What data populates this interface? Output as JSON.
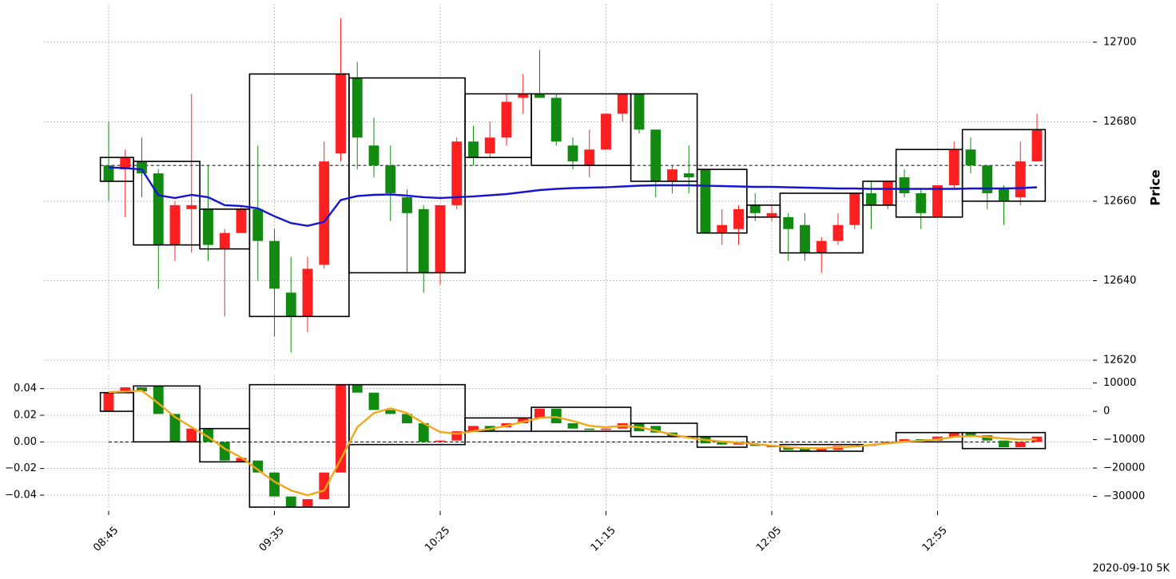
{
  "chart_data": {
    "type": "candlestick",
    "categories": [
      "08:45",
      null,
      null,
      null,
      null,
      null,
      null,
      null,
      null,
      null,
      "09:35",
      null,
      null,
      null,
      null,
      null,
      null,
      null,
      null,
      null,
      "10:25",
      null,
      null,
      null,
      null,
      null,
      null,
      null,
      null,
      null,
      "11:15",
      null,
      null,
      null,
      null,
      null,
      null,
      null,
      null,
      null,
      "12:05",
      null,
      null,
      null,
      null,
      null,
      null,
      null,
      null,
      null,
      "12:55",
      null,
      null,
      null,
      null,
      null,
      null
    ],
    "ylabel": "Price",
    "footnote": "2020-09-10 5K",
    "grid": true,
    "up_color": "#fe2020",
    "down_color": "#128a12",
    "ylim": [
      12617.8,
      12709.6
    ],
    "yticks": [
      12620,
      12640,
      12660,
      12680,
      12700
    ],
    "open": [
      12669,
      12668,
      12670,
      12667,
      12649,
      12658,
      12658,
      12648,
      12652,
      12658,
      12650,
      12637,
      12631,
      12644,
      12672,
      12691,
      12674,
      12669,
      12661,
      12658,
      12642,
      12659,
      12675,
      12672,
      12676,
      12686,
      12687,
      12686,
      12674,
      12669,
      12673,
      12682,
      12687,
      12678,
      12665,
      12667,
      12668,
      12652,
      12653,
      12659,
      12656,
      12656,
      12654,
      12647,
      12650,
      12654,
      12662,
      12659,
      12666,
      12662,
      12656,
      12664,
      12673,
      12669,
      12663,
      12661,
      12670
    ],
    "high": [
      12680,
      12673,
      12676,
      12668,
      12660,
      12687,
      12669,
      12653,
      12659,
      12674,
      12653,
      12646,
      12646,
      12675,
      12706,
      12695,
      12681,
      12674,
      12663,
      12659,
      12659,
      12676,
      12679,
      12680,
      12687,
      12692,
      12698,
      12687,
      12676,
      12678,
      12682,
      12687,
      12687,
      12678,
      12669,
      12674,
      12668,
      12658,
      12659,
      12662,
      12659,
      12657,
      12657,
      12651,
      12657,
      12662,
      12665,
      12665,
      12668,
      12663,
      12664,
      12675,
      12676,
      12669,
      12664,
      12675,
      12682
    ],
    "low": [
      12660,
      12656,
      12661,
      12638,
      12645,
      12647,
      12645,
      12631,
      12652,
      12640,
      12626,
      12622,
      12627,
      12643,
      12670,
      12668,
      12666,
      12655,
      12642,
      12637,
      12639,
      12658,
      12669,
      12671,
      12674,
      12682,
      12686,
      12674,
      12668,
      12666,
      12673,
      12680,
      12677,
      12661,
      12662,
      12662,
      12652,
      12649,
      12649,
      12655,
      12655,
      12645,
      12645,
      12642,
      12649,
      12653,
      12653,
      12658,
      12661,
      12653,
      12656,
      12663,
      12667,
      12658,
      12654,
      12659,
      12670
    ],
    "close": [
      12665,
      12671,
      12667,
      12649,
      12659,
      12659,
      12649,
      12652,
      12658,
      12650,
      12638,
      12631,
      12643,
      12670,
      12692,
      12676,
      12669,
      12662,
      12657,
      12642,
      12659,
      12675,
      12671,
      12676,
      12685,
      12687,
      12686,
      12675,
      12670,
      12673,
      12682,
      12687,
      12678,
      12665,
      12668,
      12666,
      12652,
      12654,
      12658,
      12657,
      12657,
      12653,
      12647,
      12650,
      12654,
      12662,
      12659,
      12665,
      12662,
      12657,
      12664,
      12673,
      12669,
      12662,
      12660,
      12670,
      12678
    ],
    "ma": {
      "color": "#1414d2",
      "values": [
        12668.5,
        12668.3,
        12668,
        12661.5,
        12660.8,
        12661.6,
        12661,
        12659,
        12658.8,
        12658.2,
        12656.2,
        12654.5,
        12653.8,
        12654.8,
        12660.3,
        12661.3,
        12661.6,
        12661.7,
        12661.4,
        12661,
        12660.8,
        12661,
        12661.2,
        12661.5,
        12661.8,
        12662.3,
        12662.8,
        12663.1,
        12663.3,
        12663.4,
        12663.5,
        12663.7,
        12663.9,
        12664,
        12664,
        12664,
        12663.9,
        12663.8,
        12663.7,
        12663.6,
        12663.6,
        12663.5,
        12663.4,
        12663.3,
        12663.2,
        12663.2,
        12663.1,
        12663.1,
        12663.1,
        12663.1,
        12663.1,
        12663.1,
        12663.2,
        12663.2,
        12663.2,
        12663.3,
        12663.5
      ]
    },
    "reference": 12669,
    "boxes": [
      {
        "first": 0,
        "last": 1,
        "low": 12665,
        "high": 12671
      },
      {
        "first": 2,
        "last": 5,
        "low": 12649,
        "high": 12670
      },
      {
        "first": 6,
        "last": 8,
        "low": 12648,
        "high": 12658
      },
      {
        "first": 9,
        "last": 14,
        "low": 12631,
        "high": 12692
      },
      {
        "first": 15,
        "last": 21,
        "low": 12642,
        "high": 12691
      },
      {
        "first": 22,
        "last": 25,
        "low": 12671,
        "high": 12687
      },
      {
        "first": 26,
        "last": 31,
        "low": 12669,
        "high": 12687
      },
      {
        "first": 32,
        "last": 35,
        "low": 12665,
        "high": 12687
      },
      {
        "first": 36,
        "last": 38,
        "low": 12652,
        "high": 12668
      },
      {
        "first": 39,
        "last": 40,
        "low": 12656,
        "high": 12659
      },
      {
        "first": 41,
        "last": 45,
        "low": 12647,
        "high": 12662
      },
      {
        "first": 46,
        "last": 47,
        "low": 12659,
        "high": 12665
      },
      {
        "first": 48,
        "last": 51,
        "low": 12656,
        "high": 12673
      },
      {
        "first": 52,
        "last": 56,
        "low": 12660,
        "high": 12678
      }
    ],
    "lower": {
      "ylim": [
        -0.052,
        0.05
      ],
      "yticks": [
        {
          "value": -0.04,
          "label": "−0.04"
        },
        {
          "value": -0.02,
          "label": "−0.02"
        },
        {
          "value": 0,
          "label": "0.00"
        },
        {
          "value": 0.02,
          "label": "0.02"
        },
        {
          "value": 0.04,
          "label": "0.04"
        }
      ],
      "y2lim": [
        -35200,
        12700
      ],
      "y2ticks": [
        {
          "value": -30000,
          "label": "−30000"
        },
        {
          "value": -20000,
          "label": "−20000"
        },
        {
          "value": -10000,
          "label": "−10000"
        },
        0,
        10000
      ],
      "open": [
        0.023,
        0.038,
        0.041,
        0.042,
        0.021,
        0.0,
        0.01,
        0.0,
        -0.015,
        -0.014,
        -0.023,
        -0.041,
        -0.049,
        -0.043,
        -0.023,
        0.043,
        0.037,
        0.024,
        0.021,
        0.014,
        0.0,
        0.001,
        0.008,
        0.012,
        0.011,
        0.014,
        0.018,
        0.025,
        0.014,
        0.01,
        0.009,
        0.01,
        0.014,
        0.012,
        0.007,
        0.003,
        0.004,
        0.0,
        -0.002,
        -0.002,
        -0.004,
        -0.004,
        -0.005,
        -0.007,
        -0.006,
        -0.003,
        -0.003,
        -0.001,
        0.0,
        0.002,
        0.001,
        0.004,
        0.007,
        0.005,
        0.001,
        -0.004,
        0.0
      ],
      "close": [
        0.037,
        0.041,
        0.038,
        0.021,
        0.0,
        0.01,
        0.0,
        -0.014,
        -0.012,
        -0.023,
        -0.041,
        -0.049,
        -0.043,
        -0.023,
        0.043,
        0.037,
        0.024,
        0.021,
        0.014,
        0.0,
        0.001,
        0.008,
        0.012,
        0.008,
        0.014,
        0.018,
        0.025,
        0.014,
        0.01,
        0.009,
        0.01,
        0.014,
        0.008,
        0.007,
        0.004,
        0.004,
        -0.001,
        -0.002,
        -0.001,
        -0.003,
        -0.003,
        -0.006,
        -0.007,
        -0.005,
        -0.003,
        -0.004,
        -0.002,
        0.0,
        0.002,
        0.001,
        0.004,
        0.007,
        0.004,
        0.001,
        -0.004,
        0.0,
        0.004
      ],
      "line": {
        "color": "#f0a818",
        "axis": "y2",
        "values": [
          6800,
          7000,
          7300,
          2800,
          -2000,
          -5600,
          -9000,
          -13200,
          -16300,
          -20600,
          -24800,
          -27900,
          -29600,
          -27900,
          -16900,
          -5600,
          -600,
          1100,
          -600,
          -4200,
          -7300,
          -7900,
          -7000,
          -6200,
          -5100,
          -3700,
          -2300,
          -2000,
          -3400,
          -5100,
          -5600,
          -5100,
          -5600,
          -6800,
          -8200,
          -9300,
          -10100,
          -10700,
          -11000,
          -11500,
          -12100,
          -12700,
          -13000,
          -13000,
          -12700,
          -12400,
          -11800,
          -11300,
          -10700,
          -10400,
          -9900,
          -9000,
          -8700,
          -9000,
          -9600,
          -9900,
          -9900
        ]
      },
      "reference": 0,
      "boxes": [
        {
          "first": 0,
          "last": 1,
          "low": 0.023,
          "high": 0.037
        },
        {
          "first": 2,
          "last": 5,
          "low": 0.0,
          "high": 0.042
        },
        {
          "first": 6,
          "last": 8,
          "low": -0.015,
          "high": 0.01
        },
        {
          "first": 9,
          "last": 14,
          "low": -0.049,
          "high": 0.043
        },
        {
          "first": 15,
          "last": 21,
          "low": -0.002,
          "high": 0.043
        },
        {
          "first": 22,
          "last": 25,
          "low": 0.008,
          "high": 0.018
        },
        {
          "first": 26,
          "last": 31,
          "low": 0.008,
          "high": 0.026
        },
        {
          "first": 32,
          "last": 35,
          "low": 0.004,
          "high": 0.014
        },
        {
          "first": 36,
          "last": 38,
          "low": -0.004,
          "high": 0.004
        },
        {
          "first": 41,
          "last": 45,
          "low": -0.007,
          "high": -0.002
        },
        {
          "first": 48,
          "last": 51,
          "low": 0.0,
          "high": 0.007
        },
        {
          "first": 52,
          "last": 56,
          "low": -0.005,
          "high": 0.007
        }
      ]
    }
  }
}
